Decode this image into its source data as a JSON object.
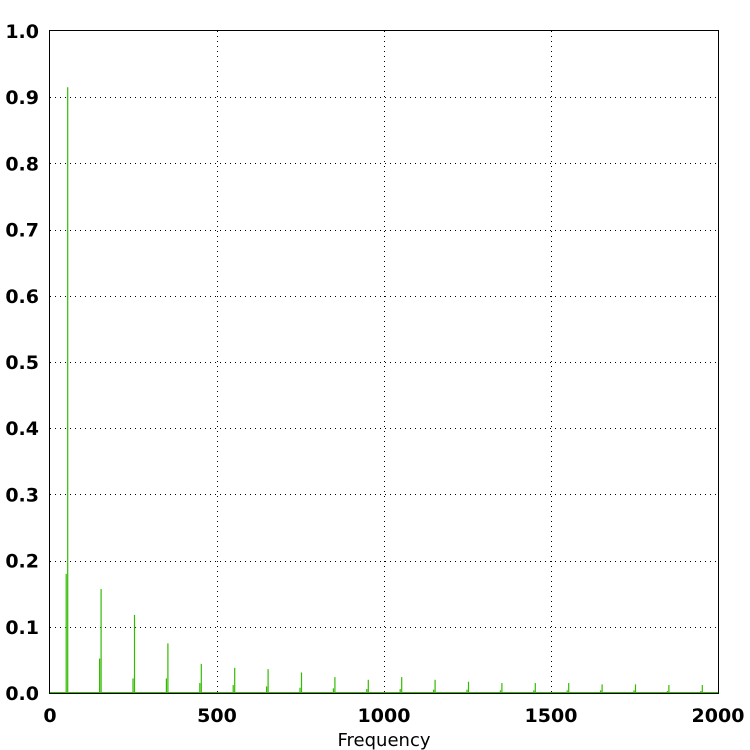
{
  "chart_data": {
    "type": "line",
    "title": "",
    "xlabel": "Frequency",
    "ylabel": "",
    "xlim": [
      0,
      2000
    ],
    "ylim": [
      0,
      1.0
    ],
    "x_ticks": [
      0,
      500,
      1000,
      1500,
      2000
    ],
    "x_tick_labels": [
      "0",
      "500",
      "1000",
      "1500",
      "2000"
    ],
    "y_ticks": [
      0,
      0.1,
      0.2,
      0.3,
      0.4,
      0.5,
      0.6,
      0.7,
      0.8,
      0.9,
      1.0
    ],
    "y_tick_labels": [
      "0.0",
      "0.1",
      "0.2",
      "0.3",
      "0.4",
      "0.5",
      "0.6",
      "0.7",
      "0.8",
      "0.9",
      "1.0"
    ],
    "grid": true,
    "line_color": "#33bb00",
    "series": [
      {
        "peaks": [
          {
            "x": 50,
            "y": 0.915,
            "side": 0.18
          },
          {
            "x": 150,
            "y": 0.157,
            "side": 0.052
          },
          {
            "x": 250,
            "y": 0.118,
            "side": 0.022
          },
          {
            "x": 350,
            "y": 0.075,
            "side": 0.022
          },
          {
            "x": 450,
            "y": 0.044,
            "side": 0.015
          },
          {
            "x": 550,
            "y": 0.038,
            "side": 0.012
          },
          {
            "x": 650,
            "y": 0.036,
            "side": 0.01
          },
          {
            "x": 750,
            "y": 0.031,
            "side": 0.008
          },
          {
            "x": 850,
            "y": 0.024,
            "side": 0.007
          },
          {
            "x": 950,
            "y": 0.02,
            "side": 0.006
          },
          {
            "x": 1050,
            "y": 0.024,
            "side": 0.006
          },
          {
            "x": 1150,
            "y": 0.02,
            "side": 0.005
          },
          {
            "x": 1250,
            "y": 0.017,
            "side": 0.005
          },
          {
            "x": 1350,
            "y": 0.015,
            "side": 0.004
          },
          {
            "x": 1450,
            "y": 0.015,
            "side": 0.004
          },
          {
            "x": 1550,
            "y": 0.015,
            "side": 0.004
          },
          {
            "x": 1650,
            "y": 0.013,
            "side": 0.004
          },
          {
            "x": 1750,
            "y": 0.013,
            "side": 0.004
          },
          {
            "x": 1850,
            "y": 0.012,
            "side": 0.003
          },
          {
            "x": 1950,
            "y": 0.012,
            "side": 0.003
          }
        ]
      }
    ]
  }
}
